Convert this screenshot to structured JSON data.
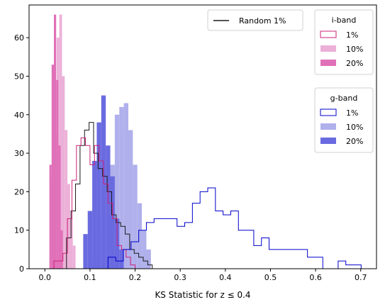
{
  "chart_data": {
    "type": "histogram",
    "xlabel": "KS Statistic for z ≤ 0.4",
    "xlim": [
      -0.035,
      0.735
    ],
    "ylim": [
      0,
      68.5
    ],
    "xticks": [
      0.0,
      0.1,
      0.2,
      0.3,
      0.4,
      0.5,
      0.6,
      0.7
    ],
    "xtick_labels": [
      "0.0",
      "0.1",
      "0.2",
      "0.3",
      "0.4",
      "0.5",
      "0.6",
      "0.7"
    ],
    "yticks": [
      0,
      10,
      20,
      30,
      40,
      50,
      60
    ],
    "ytick_labels": [
      "0",
      "10",
      "20",
      "30",
      "40",
      "50",
      "60"
    ],
    "grid": false,
    "legends": [
      {
        "position": "top-center",
        "title": "",
        "entries": [
          "Random 1%"
        ]
      },
      {
        "position": "top-right",
        "title": "i-band",
        "entries": [
          "1%",
          "10%",
          "20%"
        ]
      },
      {
        "position": "right",
        "title": "g-band",
        "entries": [
          "1%",
          "10%",
          "20%"
        ]
      }
    ],
    "series": [
      {
        "style": "filled",
        "color": "#b0b0ec",
        "legend_group": "g-band",
        "label": "10%",
        "edges": [
          0.105,
          0.115,
          0.125,
          0.135,
          0.145,
          0.155,
          0.165,
          0.175,
          0.185,
          0.195,
          0.205,
          0.215,
          0.225,
          0.235
        ],
        "counts": [
          3,
          8,
          15,
          22,
          27,
          40,
          42,
          43,
          36,
          27,
          17,
          10,
          5
        ]
      },
      {
        "style": "filled",
        "color": "#6a6ae0",
        "legend_group": "g-band",
        "label": "20%",
        "edges": [
          0.085,
          0.095,
          0.105,
          0.115,
          0.125,
          0.135,
          0.145,
          0.155,
          0.165,
          0.175
        ],
        "counts": [
          9,
          15,
          28,
          38,
          45,
          32,
          24,
          13,
          5
        ]
      },
      {
        "style": "filled",
        "color": "#ecb0d8",
        "legend_group": "i-band",
        "label": "10%",
        "edges": [
          0.014,
          0.02,
          0.026,
          0.032,
          0.038,
          0.044,
          0.05,
          0.056,
          0.062,
          0.068
        ],
        "counts": [
          24,
          35,
          60,
          66,
          50,
          36,
          22,
          13,
          6
        ]
      },
      {
        "style": "filled",
        "color": "#e070b8",
        "legend_group": "i-band",
        "label": "20%",
        "edges": [
          0.01,
          0.015,
          0.02,
          0.025,
          0.03,
          0.035,
          0.04
        ],
        "counts": [
          27,
          53,
          66,
          49,
          32,
          10
        ]
      },
      {
        "style": "step",
        "color": "#1a1a1a",
        "legend_group": "main",
        "label": "Random 1%",
        "edges": [
          0.048,
          0.058,
          0.068,
          0.078,
          0.088,
          0.098,
          0.108,
          0.118,
          0.128,
          0.138,
          0.148,
          0.158,
          0.168,
          0.178,
          0.188,
          0.198,
          0.208,
          0.218,
          0.228,
          0.238
        ],
        "counts": [
          8,
          15,
          22,
          32,
          36,
          38,
          30,
          26,
          24,
          20,
          14,
          12,
          11,
          9,
          5,
          4,
          3,
          2,
          1
        ]
      },
      {
        "style": "step",
        "color": "#cc2277",
        "legend_group": "i-band",
        "label": "1%",
        "edges": [
          0.02,
          0.03,
          0.04,
          0.05,
          0.06,
          0.07,
          0.08,
          0.09,
          0.1,
          0.11,
          0.12,
          0.13,
          0.14,
          0.15,
          0.16,
          0.17,
          0.18,
          0.19,
          0.2
        ],
        "counts": [
          2,
          2,
          4,
          13,
          23,
          32,
          34,
          32,
          27,
          32,
          28,
          22,
          17,
          13,
          6,
          5,
          3,
          1
        ]
      },
      {
        "style": "step",
        "color": "#0000cc",
        "legend_group": "g-band",
        "label": "1%",
        "edges": [
          0.14,
          0.157,
          0.174,
          0.191,
          0.208,
          0.225,
          0.242,
          0.259,
          0.276,
          0.293,
          0.31,
          0.327,
          0.344,
          0.361,
          0.378,
          0.395,
          0.412,
          0.429,
          0.446,
          0.463,
          0.48,
          0.497,
          0.514,
          0.531,
          0.548,
          0.565,
          0.582,
          0.599,
          0.616,
          0.633,
          0.65,
          0.667,
          0.684,
          0.701
        ],
        "counts": [
          3,
          2,
          5,
          7,
          10,
          12,
          13,
          13,
          13,
          11,
          12,
          17,
          20,
          21,
          15,
          14,
          15,
          10,
          10,
          6,
          8,
          5,
          5,
          5,
          5,
          5,
          3,
          3,
          0,
          0,
          2,
          1,
          1
        ]
      }
    ]
  }
}
